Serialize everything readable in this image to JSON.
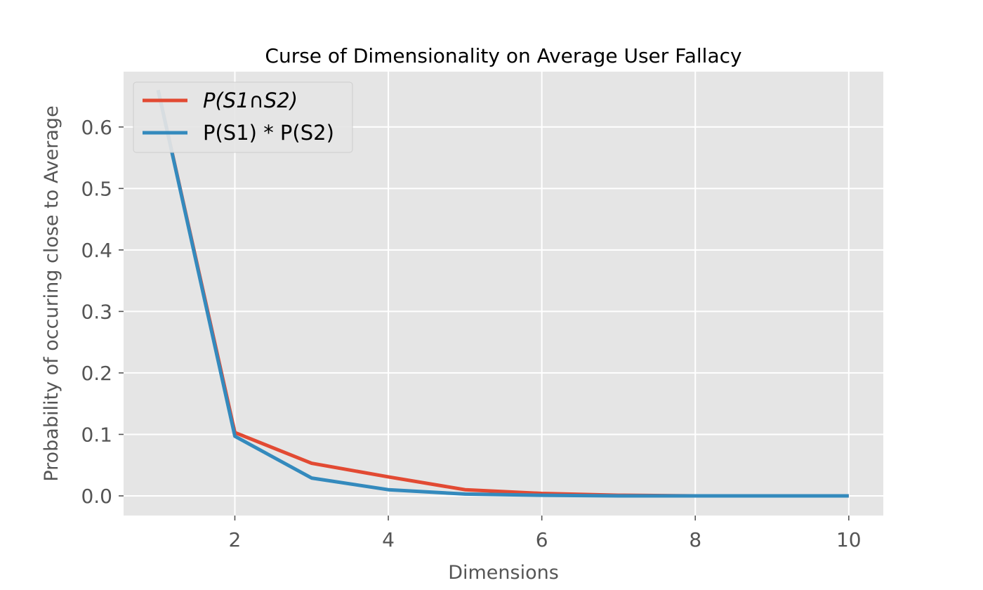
{
  "chart_data": {
    "type": "line",
    "title": "Curse of Dimensionality on Average User Fallacy",
    "xlabel": "Dimensions",
    "ylabel": "Probability of occuring close to Average",
    "xlim": [
      0.55,
      10.45
    ],
    "ylim": [
      -0.032,
      0.69
    ],
    "xticks": [
      2,
      4,
      6,
      8,
      10
    ],
    "yticks": [
      0.0,
      0.1,
      0.2,
      0.3,
      0.4,
      0.5,
      0.6
    ],
    "xtick_labels": [
      "2",
      "4",
      "6",
      "8",
      "10"
    ],
    "ytick_labels": [
      "0.0",
      "0.1",
      "0.2",
      "0.3",
      "0.4",
      "0.5",
      "0.6"
    ],
    "grid": true,
    "legend_position": "top-left",
    "background_color": "#e5e5e5",
    "x": [
      1,
      2,
      3,
      4,
      5,
      6,
      7,
      8,
      9,
      10
    ],
    "series": [
      {
        "name": "P(S1∩S2)",
        "color": "#e24a33",
        "values": [
          0.66,
          0.103,
          0.053,
          0.031,
          0.01,
          0.004,
          0.001,
          0.0,
          0.0,
          0.0
        ]
      },
      {
        "name": "P(S1) * P(S2)",
        "color": "#348abd",
        "values": [
          0.66,
          0.097,
          0.029,
          0.01,
          0.003,
          0.001,
          0.0,
          0.0,
          0.0,
          0.0
        ]
      }
    ]
  }
}
